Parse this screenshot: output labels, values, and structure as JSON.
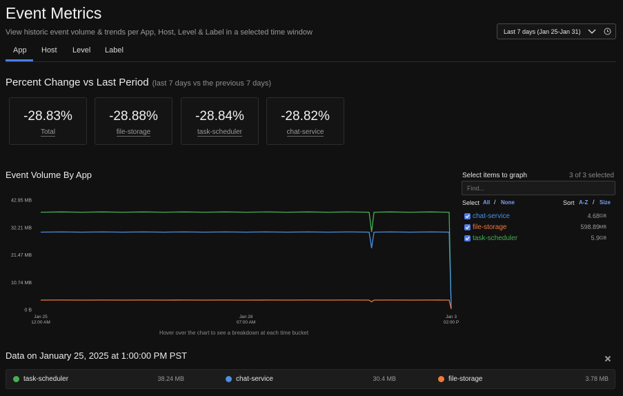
{
  "header": {
    "title": "Event Metrics",
    "subtitle": "View historic event volume & trends per App, Host, Level & Label in a selected time window",
    "time_range": "Last 7 days (Jan 25-Jan 31)"
  },
  "tabs": [
    {
      "label": "App",
      "active": true
    },
    {
      "label": "Host",
      "active": false
    },
    {
      "label": "Level",
      "active": false
    },
    {
      "label": "Label",
      "active": false
    }
  ],
  "percent_change": {
    "title": "Percent Change vs Last Period",
    "subtitle": "(last 7 days vs the previous 7 days)",
    "cards": [
      {
        "value": "-28.83%",
        "label": "Total"
      },
      {
        "value": "-28.88%",
        "label": "file-storage"
      },
      {
        "value": "-28.84%",
        "label": "task-scheduler"
      },
      {
        "value": "-28.82%",
        "label": "chat-service"
      }
    ]
  },
  "volume": {
    "title": "Event Volume By App",
    "hover_hint": "Hover over the chart to see a breakdown at each time bucket"
  },
  "selector": {
    "title": "Select items to graph",
    "count": "3 of 3 selected",
    "find_placeholder": "Find...",
    "select_label": "Select",
    "select_all": "All",
    "select_none": "None",
    "sort_label": "Sort",
    "sort_az": "A-Z",
    "sort_size": "Size",
    "items": [
      {
        "name": "chat-service",
        "size": "4.68",
        "unit": "GB",
        "color": "#4a8fe0",
        "checked": true
      },
      {
        "name": "file-storage",
        "size": "598.89",
        "unit": "MB",
        "color": "#f07a3a",
        "checked": true
      },
      {
        "name": "task-scheduler",
        "size": "5.9",
        "unit": "GB",
        "color": "#45b04f",
        "checked": true
      }
    ]
  },
  "data_on": {
    "title": "Data on January 25, 2025 at 1:00:00 PM PST",
    "entries": [
      {
        "name": "task-scheduler",
        "value": "38.24 MB",
        "color": "#45b04f"
      },
      {
        "name": "chat-service",
        "value": "30.4 MB",
        "color": "#4a8fe0"
      },
      {
        "name": "file-storage",
        "value": "3.78 MB",
        "color": "#f07a3a"
      }
    ]
  },
  "chart_data": {
    "type": "line",
    "title": "",
    "xlabel": "",
    "ylabel": "",
    "y_tick_labels": [
      "42.95 MB",
      "32.21 MB",
      "21.47 MB",
      "10.74 MB",
      "0 B"
    ],
    "ylim": [
      0,
      42.95
    ],
    "x_ticks": [
      {
        "pos": 0,
        "line1": "Jan 25",
        "line2": "12:00 AM"
      },
      {
        "pos": 0.5,
        "line1": "Jan 28",
        "line2": "07:00 AM"
      },
      {
        "pos": 1,
        "line1": "Jan 3",
        "line2": "02:00 P"
      }
    ],
    "x": [
      0,
      0.05,
      0.1,
      0.15,
      0.2,
      0.25,
      0.3,
      0.35,
      0.4,
      0.45,
      0.5,
      0.55,
      0.6,
      0.65,
      0.7,
      0.75,
      0.8,
      0.8,
      0.806,
      0.812,
      0.85,
      0.9,
      0.95,
      0.995,
      1.0
    ],
    "series": [
      {
        "name": "task-scheduler",
        "color": "#45b04f",
        "values": [
          38.2,
          38.3,
          38.2,
          38.3,
          38.2,
          38.3,
          38.2,
          38.3,
          38.2,
          38.3,
          38.2,
          38.3,
          38.2,
          38.3,
          38.2,
          38.3,
          38.2,
          38.2,
          30.5,
          38.2,
          38.3,
          38.2,
          38.3,
          38.2,
          0.5
        ]
      },
      {
        "name": "chat-service",
        "color": "#4a8fe0",
        "values": [
          30.4,
          30.5,
          30.4,
          30.5,
          30.4,
          30.5,
          30.4,
          30.5,
          30.4,
          30.5,
          30.4,
          30.5,
          30.4,
          30.5,
          30.4,
          30.5,
          30.4,
          30.4,
          24.2,
          30.4,
          30.5,
          30.4,
          30.5,
          30.4,
          0.5
        ]
      },
      {
        "name": "file-storage",
        "color": "#f07a3a",
        "values": [
          3.78,
          3.8,
          3.78,
          3.8,
          3.78,
          3.8,
          3.78,
          3.8,
          3.78,
          3.8,
          3.78,
          3.8,
          3.78,
          3.8,
          3.78,
          3.8,
          3.78,
          3.78,
          3.1,
          3.78,
          3.8,
          3.78,
          3.8,
          3.78,
          0.3
        ]
      }
    ],
    "grid": false,
    "legend": "none"
  }
}
